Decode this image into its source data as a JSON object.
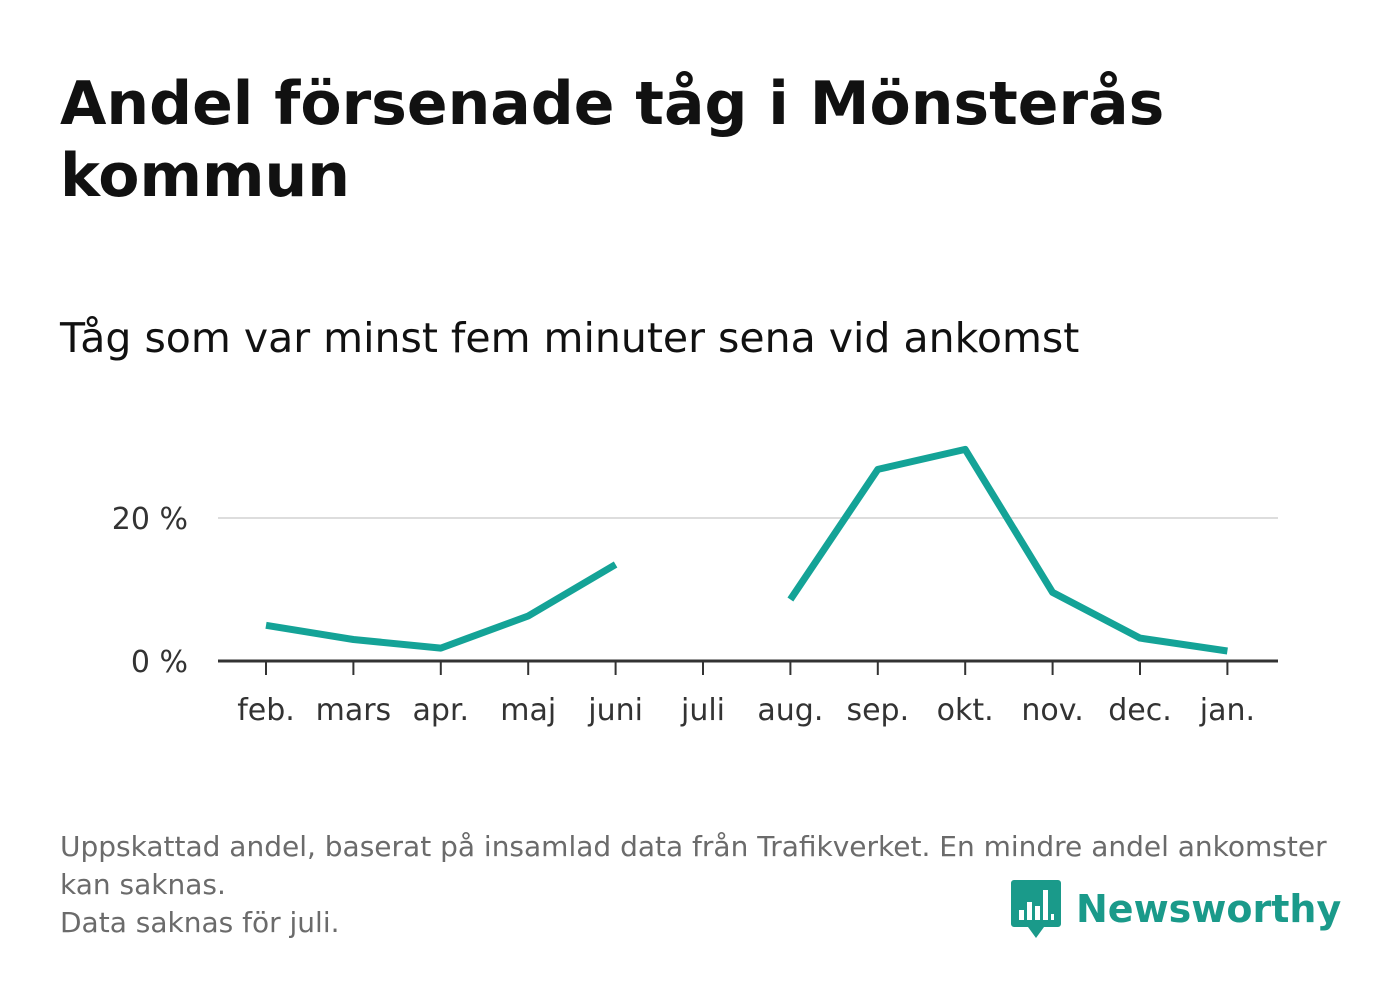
{
  "title": "Andel försenade tåg i Mönsterås kommun",
  "subtitle": "Tåg som var minst fem minuter sena vid ankomst",
  "footnote": {
    "line1": "Uppskattad andel, baserat på insamlad data från Trafikverket. En mindre andel ankomster kan saknas.",
    "line2": "Data saknas för juli."
  },
  "brand": {
    "name": "Newsworthy",
    "icon": "newsworthy-bar-chart-icon",
    "color": "#1a9a8a"
  },
  "chart_data": {
    "type": "line",
    "categories": [
      "feb.",
      "mars",
      "apr.",
      "maj",
      "juni",
      "juli",
      "aug.",
      "sep.",
      "okt.",
      "nov.",
      "dec.",
      "jan."
    ],
    "series": [
      {
        "values": [
          5.0,
          3.0,
          1.8,
          6.3,
          13.5,
          null,
          8.6,
          26.8,
          29.6,
          9.6,
          3.2,
          1.4
        ],
        "color": "#14a397"
      }
    ],
    "yticks": [
      {
        "value": 0,
        "label": "0 %"
      },
      {
        "value": 20,
        "label": "20 %"
      }
    ],
    "ylim": [
      0,
      33
    ],
    "grid": true,
    "legend": "none",
    "xlabel": "",
    "ylabel": ""
  }
}
